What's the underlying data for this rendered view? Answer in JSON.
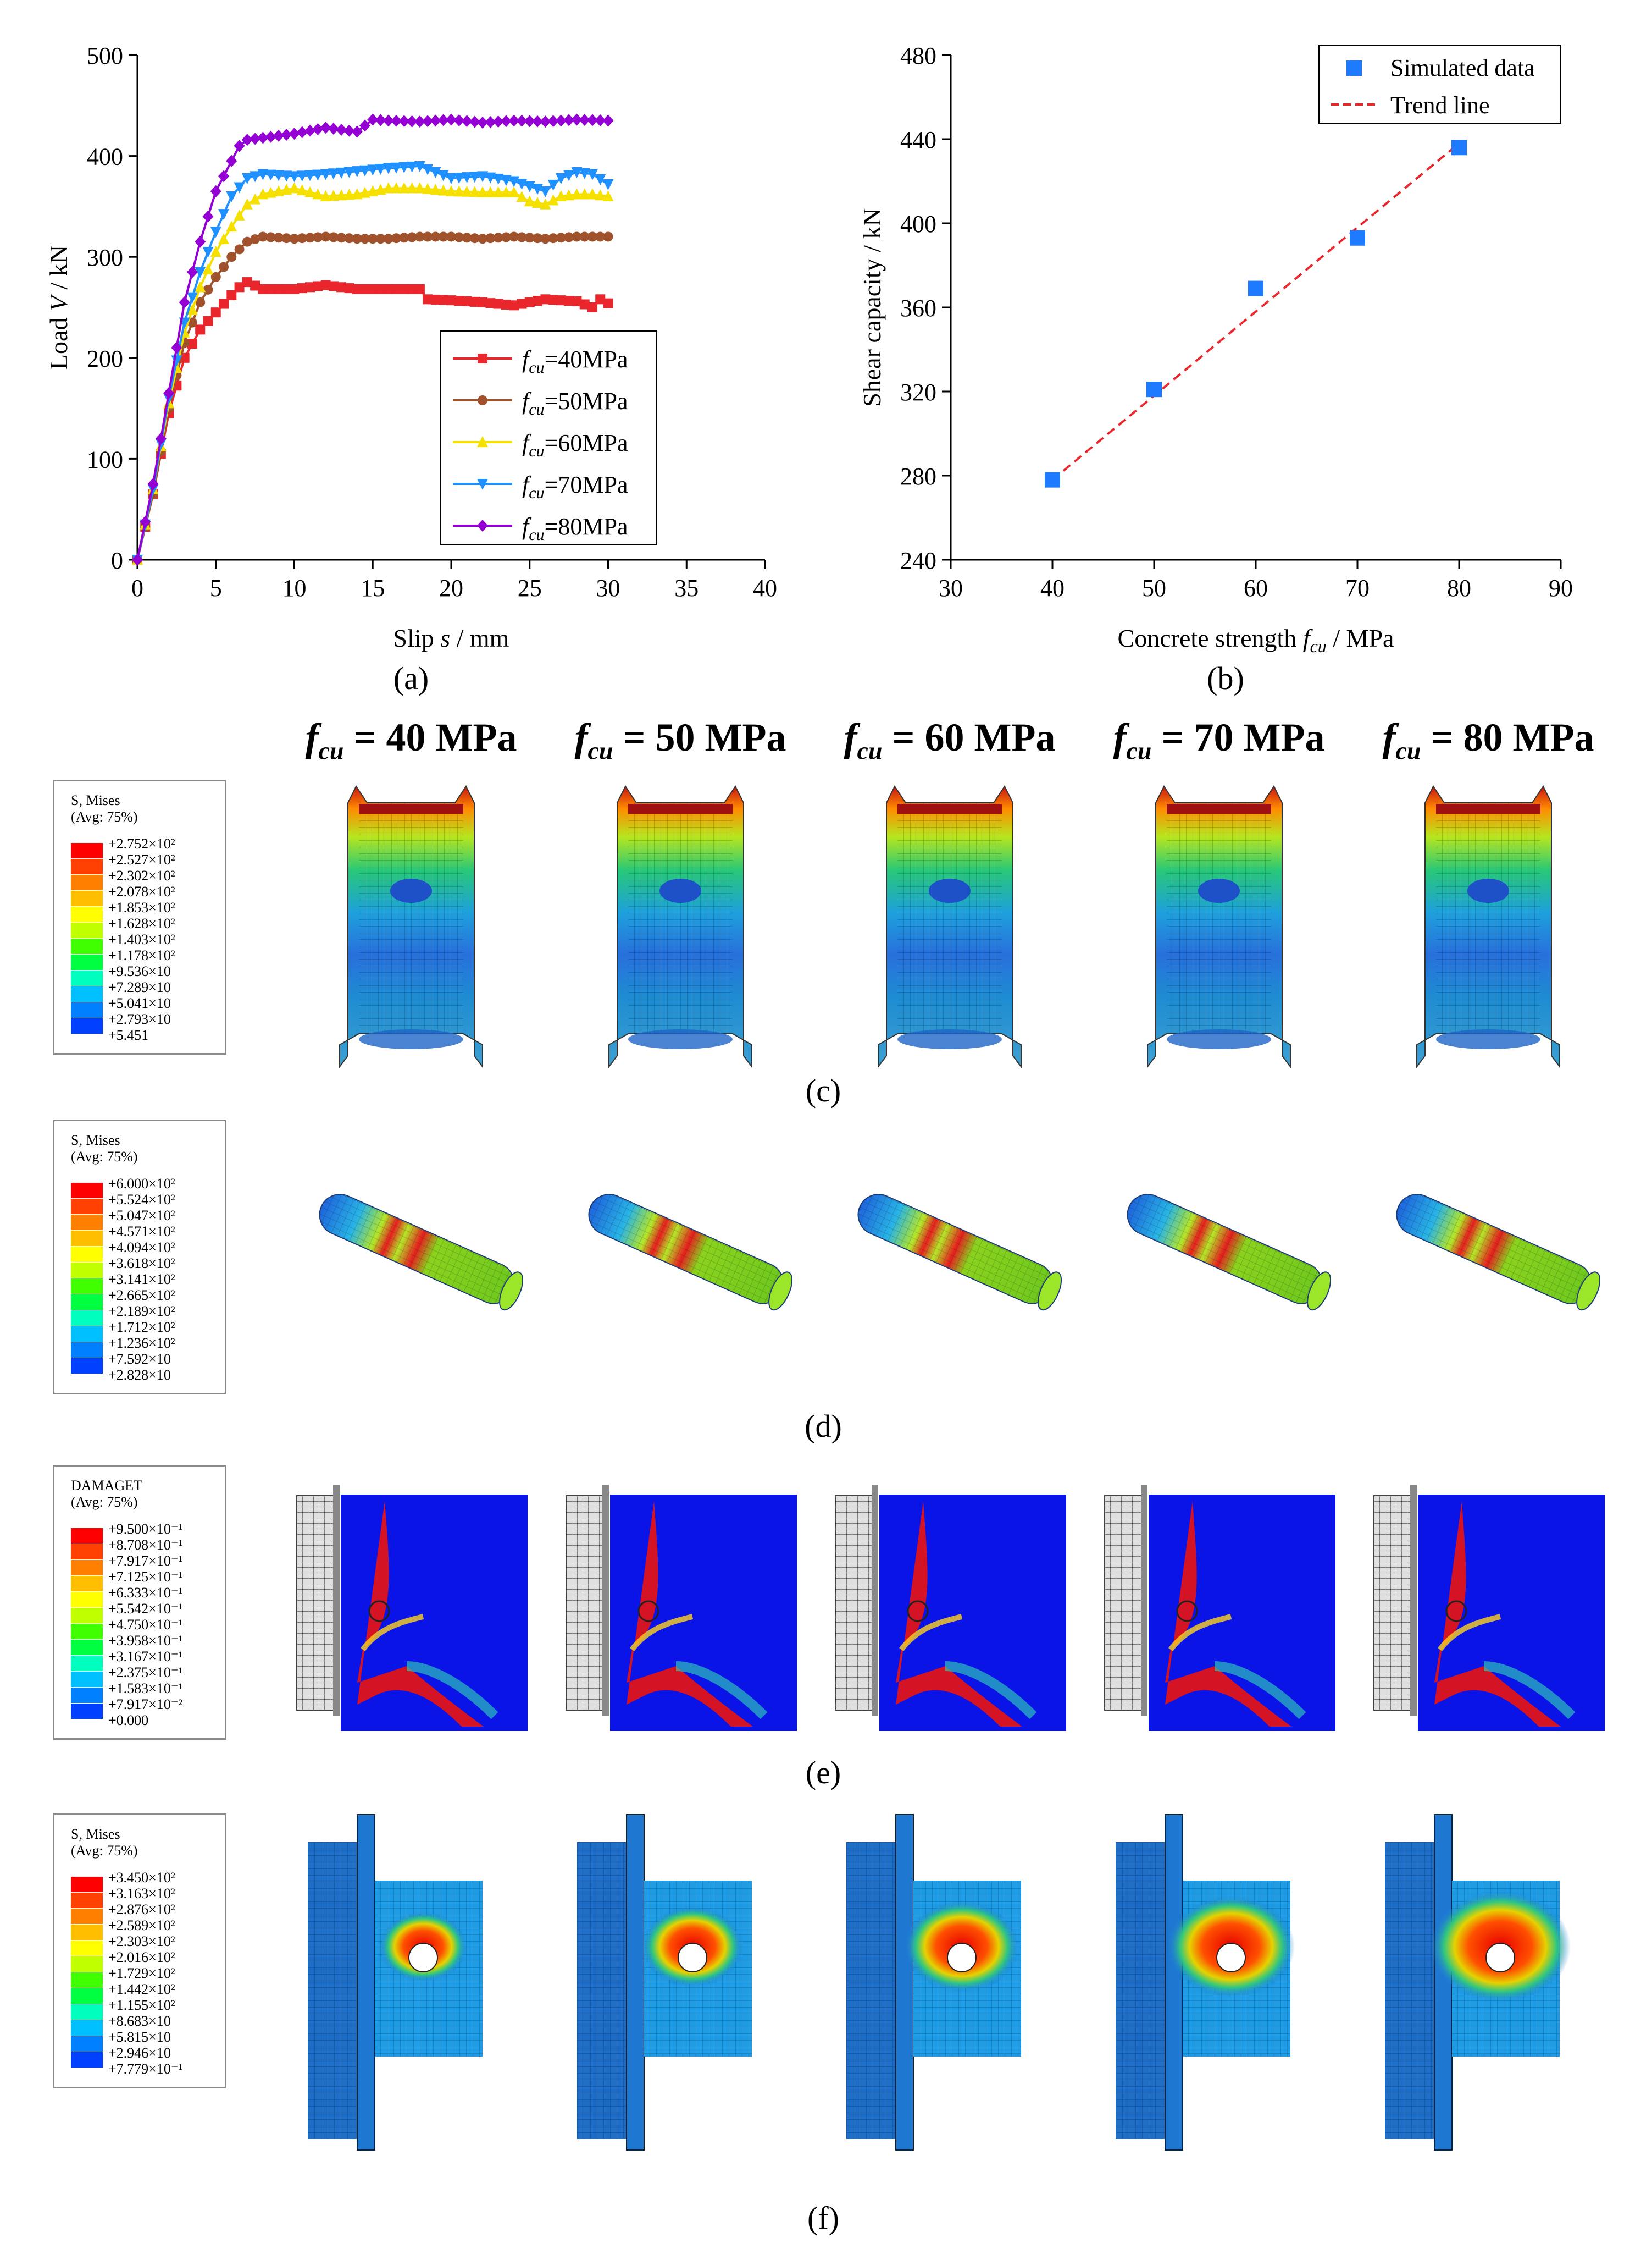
{
  "chart_data": [
    {
      "panel": "(a)",
      "type": "line",
      "xlabel": "Slip s / mm",
      "ylabel": "Load V / kN",
      "xlim": [
        0,
        40
      ],
      "ylim": [
        0,
        500
      ],
      "xticks": [
        "0",
        "5",
        "10",
        "15",
        "20",
        "25",
        "30",
        "35",
        "40"
      ],
      "yticks": [
        "0",
        "100",
        "200",
        "300",
        "400",
        "500"
      ],
      "legend_position": "lower-right",
      "series": [
        {
          "name": "fcu=40MPa",
          "sub": "cu",
          "label": "=40MPa",
          "color": "#e8262c",
          "marker": "square",
          "x": [
            0,
            1,
            2,
            3,
            4,
            5,
            6,
            6.5,
            7,
            8,
            10,
            12,
            14,
            16,
            18,
            18.5,
            20,
            22,
            24,
            26,
            28,
            29,
            29.5,
            30
          ],
          "y": [
            0,
            65,
            145,
            200,
            228,
            245,
            262,
            270,
            275,
            268,
            268,
            272,
            268,
            268,
            268,
            258,
            257,
            255,
            252,
            258,
            256,
            250,
            258,
            254
          ]
        },
        {
          "name": "fcu=50MPa",
          "sub": "cu",
          "label": "=50MPa",
          "color": "#a0522d",
          "marker": "circle",
          "x": [
            0,
            1,
            2,
            3,
            4,
            5,
            6,
            7,
            8,
            10,
            12,
            14,
            16,
            18,
            20,
            22,
            24,
            26,
            28,
            30
          ],
          "y": [
            0,
            65,
            150,
            215,
            255,
            280,
            300,
            315,
            320,
            318,
            320,
            318,
            318,
            320,
            320,
            318,
            320,
            318,
            320,
            320
          ]
        },
        {
          "name": "fcu=60MPa",
          "sub": "cu",
          "label": "=60MPa",
          "color": "#f5e000",
          "marker": "triangle-up",
          "x": [
            0,
            1,
            2,
            3,
            4,
            5,
            6,
            7,
            8,
            10,
            12,
            14,
            16,
            18,
            20,
            22,
            24,
            25,
            26,
            27,
            28,
            29,
            30
          ],
          "y": [
            0,
            70,
            155,
            225,
            270,
            305,
            330,
            352,
            362,
            368,
            360,
            362,
            368,
            368,
            365,
            364,
            364,
            355,
            352,
            360,
            362,
            362,
            360
          ]
        },
        {
          "name": "fcu=70MPa",
          "sub": "cu",
          "label": "=70MPa",
          "color": "#1e90ff",
          "marker": "triangle-down",
          "x": [
            0,
            1,
            2,
            3,
            4,
            5,
            6,
            7,
            8,
            10,
            12,
            14,
            16,
            18,
            20,
            22,
            24,
            26,
            27,
            28,
            29,
            30
          ],
          "y": [
            0,
            70,
            160,
            235,
            285,
            325,
            360,
            378,
            382,
            380,
            382,
            385,
            388,
            390,
            378,
            380,
            375,
            365,
            378,
            384,
            382,
            372
          ]
        },
        {
          "name": "fcu=80MPa",
          "sub": "cu",
          "label": "=80MPa",
          "color": "#9400d3",
          "marker": "diamond",
          "x": [
            0,
            1,
            2,
            3,
            4,
            5,
            6,
            6.5,
            7,
            8,
            10,
            12,
            14,
            15,
            16,
            18,
            20,
            22,
            24,
            26,
            28,
            30
          ],
          "y": [
            0,
            75,
            165,
            255,
            315,
            365,
            395,
            410,
            416,
            418,
            422,
            428,
            424,
            436,
            435,
            434,
            436,
            433,
            435,
            434,
            436,
            435
          ]
        }
      ]
    },
    {
      "panel": "(b)",
      "type": "scatter",
      "xlabel": "Concrete strength fcu / MPa",
      "ylabel": "Shear capacity / kN",
      "xlim": [
        30,
        90
      ],
      "ylim": [
        240,
        480
      ],
      "xticks": [
        "30",
        "40",
        "50",
        "60",
        "70",
        "80",
        "90"
      ],
      "yticks": [
        "240",
        "280",
        "320",
        "360",
        "400",
        "440",
        "480"
      ],
      "legend_position": "top-right",
      "series": [
        {
          "name": "Simulated data",
          "color": "#1e7bff",
          "x": [
            40,
            50,
            60,
            70,
            80
          ],
          "y": [
            278,
            321,
            369,
            393,
            436
          ]
        },
        {
          "name": "Trend line",
          "color": "#e8262c",
          "style": "dashed",
          "x": [
            40,
            80
          ],
          "y": [
            278,
            438
          ]
        }
      ]
    }
  ],
  "labels": {
    "a": "(a)",
    "b": "(b)",
    "c": "(c)",
    "d": "(d)",
    "e": "(e)",
    "f": "(f)"
  },
  "columns": [
    {
      "sym": "f",
      "sub": "cu",
      "val": " = 40 MPa"
    },
    {
      "sym": "f",
      "sub": "cu",
      "val": " = 50 MPa"
    },
    {
      "sym": "f",
      "sub": "cu",
      "val": " = 60 MPa"
    },
    {
      "sym": "f",
      "sub": "cu",
      "val": " = 70 MPa"
    },
    {
      "sym": "f",
      "sub": "cu",
      "val": " = 80 MPa"
    }
  ],
  "contour_legends": [
    {
      "title1": "S, Mises",
      "title2": "(Avg: 75%)",
      "palette": "rainbow",
      "values": [
        "+2.752×10²",
        "+2.527×10²",
        "+2.302×10²",
        "+2.078×10²",
        "+1.853×10²",
        "+1.628×10²",
        "+1.403×10²",
        "+1.178×10²",
        "+9.536×10",
        "+7.289×10",
        "+5.041×10",
        "+2.793×10",
        "+5.451"
      ]
    },
    {
      "title1": "S, Mises",
      "title2": "(Avg: 75%)",
      "palette": "rainbow",
      "values": [
        "+6.000×10²",
        "+5.524×10²",
        "+5.047×10²",
        "+4.571×10²",
        "+4.094×10²",
        "+3.618×10²",
        "+3.141×10²",
        "+2.665×10²",
        "+2.189×10²",
        "+1.712×10²",
        "+1.236×10²",
        "+7.592×10",
        "+2.828×10"
      ]
    },
    {
      "title1": "DAMAGET",
      "title2": "(Avg: 75%)",
      "palette": "rainbow",
      "values": [
        "+9.500×10⁻¹",
        "+8.708×10⁻¹",
        "+7.917×10⁻¹",
        "+7.125×10⁻¹",
        "+6.333×10⁻¹",
        "+5.542×10⁻¹",
        "+4.750×10⁻¹",
        "+3.958×10⁻¹",
        "+3.167×10⁻¹",
        "+2.375×10⁻¹",
        "+1.583×10⁻¹",
        "+7.917×10⁻²",
        "+0.000"
      ]
    },
    {
      "title1": "S, Mises",
      "title2": "(Avg: 75%)",
      "palette": "rainbow",
      "values": [
        "+3.450×10²",
        "+3.163×10²",
        "+2.876×10²",
        "+2.589×10²",
        "+2.303×10²",
        "+2.016×10²",
        "+1.729×10²",
        "+1.442×10²",
        "+1.155×10²",
        "+8.683×10",
        "+5.815×10",
        "+2.946×10",
        "+7.779×10⁻¹"
      ]
    }
  ],
  "palette_colors": [
    "#ff0000",
    "#ff4000",
    "#ff8000",
    "#ffbf00",
    "#ffff00",
    "#bfff00",
    "#40ff00",
    "#00ff40",
    "#00ffbf",
    "#00bfff",
    "#0080ff",
    "#0040ff",
    "#0000ff"
  ]
}
